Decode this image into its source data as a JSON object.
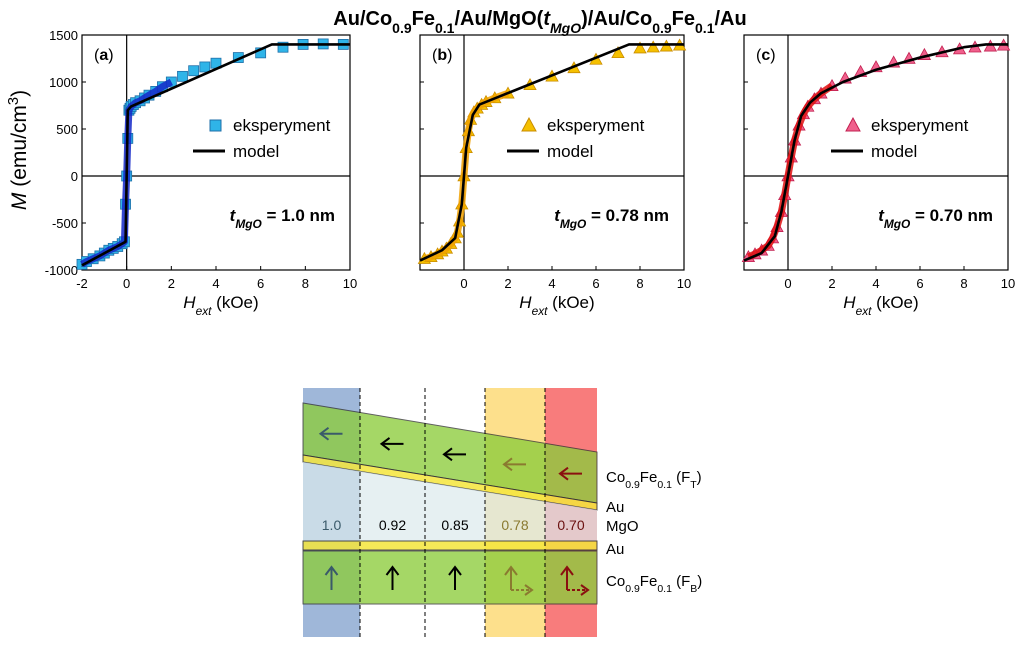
{
  "figure": {
    "title_parts": [
      {
        "t": "Au/Co",
        "sub": false,
        "it": false
      },
      {
        "t": "0.9",
        "sub": true,
        "it": false
      },
      {
        "t": "Fe",
        "sub": false,
        "it": false
      },
      {
        "t": "0.1",
        "sub": true,
        "it": false
      },
      {
        "t": "/Au/MgO(",
        "sub": false,
        "it": false
      },
      {
        "t": "t",
        "sub": false,
        "it": true
      },
      {
        "t": "MgO",
        "sub": true,
        "it": true
      },
      {
        "t": ")/Au/Co",
        "sub": false,
        "it": false
      },
      {
        "t": "0.9",
        "sub": true,
        "it": false
      },
      {
        "t": "Fe",
        "sub": false,
        "it": false
      },
      {
        "t": "0.1",
        "sub": true,
        "it": false
      },
      {
        "t": "/Au",
        "sub": false,
        "it": false
      }
    ],
    "ylabel_symbol": "M",
    "ylabel_unit": "(emu/cm",
    "ylabel_sup": "3",
    "ylabel_close": ")",
    "xlabel_symbol": "H",
    "xlabel_sub": "ext",
    "xlabel_unit": " (kOe)"
  },
  "chart_data": [
    {
      "type": "line",
      "panel_label": "a",
      "xlim": [
        -2,
        10
      ],
      "ylim": [
        -1000,
        1500
      ],
      "xticks": [
        "-2",
        "0",
        "2",
        "4",
        "6",
        "8",
        "10"
      ],
      "xtick_values": [
        -2,
        0,
        2,
        4,
        6,
        8,
        10
      ],
      "yticks": [
        "-1000",
        "-500",
        "0",
        "500",
        "1000",
        "1500"
      ],
      "ytick_values": [
        -1000,
        -500,
        0,
        500,
        1000,
        1500
      ],
      "annotation_t": "t",
      "annotation_sub": "MgO",
      "annotation_value": " = 1.0 nm",
      "series": [
        {
          "name": "eksperyment",
          "marker": "square",
          "color": "#2fb4e8",
          "x": [
            -2.0,
            -1.8,
            -1.5,
            -1.2,
            -1.0,
            -0.8,
            -0.6,
            -0.4,
            -0.2,
            -0.1,
            -0.05,
            0.0,
            0.05,
            0.1,
            0.15,
            0.2,
            0.3,
            0.4,
            0.6,
            0.8,
            1.0,
            1.3,
            1.6,
            2.0,
            2.5,
            3.0,
            3.5,
            4.0,
            5.0,
            6.0,
            7.0,
            7.9,
            8.8,
            9.7
          ],
          "y": [
            -940,
            -910,
            -880,
            -850,
            -820,
            -790,
            -770,
            -750,
            -720,
            -700,
            -300,
            0,
            400,
            700,
            720,
            740,
            760,
            780,
            800,
            830,
            860,
            900,
            950,
            1000,
            1060,
            1120,
            1160,
            1200,
            1260,
            1310,
            1370,
            1400,
            1405,
            1400
          ]
        },
        {
          "name": "model",
          "marker": "none",
          "color": "#000000",
          "x": [
            -2.0,
            -0.05,
            0.0,
            0.05,
            0.2,
            6.5,
            10.0
          ],
          "y": [
            -950,
            -700,
            0,
            700,
            740,
            1400,
            1400
          ]
        }
      ]
    },
    {
      "type": "line",
      "panel_label": "b",
      "xlim": [
        -2,
        10
      ],
      "ylim": [
        -1000,
        1500
      ],
      "xticks": [
        "0",
        "2",
        "4",
        "6",
        "8",
        "10"
      ],
      "xtick_values": [
        0,
        2,
        4,
        6,
        8,
        10
      ],
      "annotation_t": "t",
      "annotation_sub": "MgO",
      "annotation_value": " = 0.78 nm",
      "series": [
        {
          "name": "eksperyment",
          "marker": "triangle",
          "color": "#f5c000",
          "x": [
            -1.8,
            -1.5,
            -1.2,
            -1.0,
            -0.8,
            -0.6,
            -0.4,
            -0.3,
            -0.2,
            -0.1,
            0.0,
            0.1,
            0.2,
            0.3,
            0.45,
            0.6,
            0.8,
            1.0,
            1.4,
            2.0,
            3.0,
            4.0,
            5.0,
            6.0,
            7.0,
            8.0,
            8.6,
            9.2,
            9.8
          ],
          "y": [
            -880,
            -860,
            -830,
            -800,
            -770,
            -720,
            -660,
            -600,
            -480,
            -300,
            0,
            300,
            480,
            600,
            680,
            720,
            760,
            790,
            830,
            880,
            970,
            1060,
            1150,
            1240,
            1310,
            1360,
            1370,
            1380,
            1390
          ]
        },
        {
          "name": "model",
          "marker": "none",
          "color": "#000000",
          "x": [
            -2.0,
            -1.0,
            -0.4,
            -0.1,
            0.0,
            0.1,
            0.4,
            0.7,
            7.5,
            10.0
          ],
          "y": [
            -900,
            -790,
            -660,
            -300,
            0,
            300,
            650,
            760,
            1400,
            1400
          ]
        }
      ]
    },
    {
      "type": "line",
      "panel_label": "c",
      "xlim": [
        -2,
        10
      ],
      "ylim": [
        -1000,
        1500
      ],
      "xticks": [
        "0",
        "2",
        "4",
        "6",
        "8",
        "10"
      ],
      "xtick_values": [
        0,
        2,
        4,
        6,
        8,
        10
      ],
      "annotation_t": "t",
      "annotation_sub": "MgO",
      "annotation_value": " = 0.70 nm",
      "series": [
        {
          "name": "eksperyment",
          "marker": "triangle",
          "color": "#f0608c",
          "x": [
            -1.8,
            -1.5,
            -1.2,
            -0.9,
            -0.7,
            -0.5,
            -0.3,
            -0.15,
            0.0,
            0.15,
            0.3,
            0.5,
            0.7,
            0.9,
            1.2,
            1.5,
            2.0,
            2.6,
            3.3,
            4.0,
            4.8,
            5.5,
            6.2,
            7.0,
            7.8,
            8.5,
            9.2,
            9.8
          ],
          "y": [
            -860,
            -830,
            -790,
            -740,
            -660,
            -540,
            -380,
            -200,
            0,
            200,
            380,
            540,
            660,
            740,
            820,
            880,
            960,
            1040,
            1110,
            1160,
            1210,
            1250,
            1290,
            1320,
            1350,
            1370,
            1380,
            1390
          ]
        },
        {
          "name": "model",
          "marker": "none",
          "color": "#000000",
          "x": [
            -2.0,
            -1.2,
            -0.6,
            -0.3,
            0.0,
            0.3,
            0.6,
            1.0,
            1.5,
            2.5,
            4.0,
            6.0,
            8.0,
            9.0,
            10.0
          ],
          "y": [
            -900,
            -820,
            -640,
            -380,
            0,
            380,
            640,
            780,
            880,
            1000,
            1130,
            1260,
            1370,
            1400,
            1400
          ]
        }
      ]
    }
  ],
  "diagram": {
    "columns": [
      {
        "thickness": "1.0",
        "color": "#9fb7d9",
        "bottom_arrow": "up"
      },
      {
        "thickness": "0.92",
        "color": "#ffffff",
        "bottom_arrow": "up"
      },
      {
        "thickness": "0.85",
        "color": "#ffffff",
        "bottom_arrow": "up"
      },
      {
        "thickness": "0.78",
        "color": "#fde08c",
        "bottom_arrow": "up-tilted"
      },
      {
        "thickness": "0.70",
        "color": "#f87c7c",
        "bottom_arrow": "up-right"
      }
    ],
    "labels": {
      "ft_base": "Co",
      "ft_sub1": "0.9",
      "ft_mid": "Fe",
      "ft_sub2": "0.1",
      "ft_tail": " (F",
      "ft_sub3": "T",
      "ft_close": ")",
      "au_top": "Au",
      "mgo": "MgO",
      "au_bottom": "Au",
      "fb_base": "Co",
      "fb_sub1": "0.9",
      "fb_mid": "Fe",
      "fb_sub2": "0.1",
      "fb_tail": " (F",
      "fb_sub3": "B",
      "fb_close": ")"
    },
    "colors": {
      "layer_green": "#8ccc3c",
      "au_yellow": "#f5e63c",
      "mgo_fill": "#dce9ec"
    }
  }
}
